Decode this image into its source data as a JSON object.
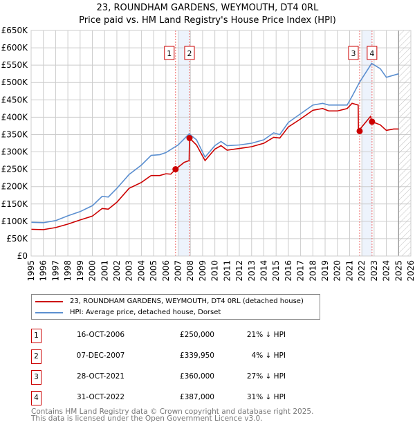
{
  "title_line1": "23, ROUNDHAM GARDENS, WEYMOUTH, DT4 0RL",
  "title_line2": "Price paid vs. HM Land Registry's House Price Index (HPI)",
  "chart_data": {
    "type": "line",
    "title": "23, ROUNDHAM GARDENS, WEYMOUTH, DT4 0RL — Price paid vs. HM Land Registry's House Price Index (HPI)",
    "xlim": [
      1995,
      2026
    ],
    "ylim": [
      0,
      650000
    ],
    "grid": true,
    "legend_placement": "below",
    "x_ticks": [
      "1995",
      "1996",
      "1997",
      "1998",
      "1999",
      "2000",
      "2001",
      "2002",
      "2003",
      "2004",
      "2005",
      "2006",
      "2007",
      "2008",
      "2009",
      "2010",
      "2011",
      "2012",
      "2013",
      "2014",
      "2015",
      "2016",
      "2017",
      "2018",
      "2019",
      "2020",
      "2021",
      "2022",
      "2023",
      "2024",
      "2025",
      "2026"
    ],
    "y_ticks": [
      {
        "v": 0,
        "label": "£0"
      },
      {
        "v": 50000,
        "label": "£50K"
      },
      {
        "v": 100000,
        "label": "£100K"
      },
      {
        "v": 150000,
        "label": "£150K"
      },
      {
        "v": 200000,
        "label": "£200K"
      },
      {
        "v": 250000,
        "label": "£250K"
      },
      {
        "v": 300000,
        "label": "£300K"
      },
      {
        "v": 350000,
        "label": "£350K"
      },
      {
        "v": 400000,
        "label": "£400K"
      },
      {
        "v": 450000,
        "label": "£450K"
      },
      {
        "v": 500000,
        "label": "£500K"
      },
      {
        "v": 550000,
        "label": "£550K"
      },
      {
        "v": 600000,
        "label": "£600K"
      },
      {
        "v": 650000,
        "label": "£650K"
      }
    ],
    "series": [
      {
        "name": "23, ROUNDHAM GARDENS, WEYMOUTH, DT4 0RL (detached house)",
        "color": "#cc0000",
        "points": [
          [
            1995,
            77000
          ],
          [
            1996,
            76000
          ],
          [
            1997,
            82000
          ],
          [
            1998,
            92000
          ],
          [
            1999,
            104000
          ],
          [
            2000,
            115000
          ],
          [
            2000.8,
            137000
          ],
          [
            2001.3,
            135000
          ],
          [
            2002,
            155000
          ],
          [
            2003,
            195000
          ],
          [
            2004,
            212000
          ],
          [
            2004.8,
            232000
          ],
          [
            2005.5,
            232000
          ],
          [
            2006,
            237000
          ],
          [
            2006.4,
            236000
          ],
          [
            2006.79,
            250000
          ],
          [
            2007.5,
            270000
          ],
          [
            2007.9,
            275000
          ],
          [
            2007.93,
            339950
          ],
          [
            2008.5,
            320000
          ],
          [
            2009.2,
            275000
          ],
          [
            2010,
            308000
          ],
          [
            2010.5,
            318000
          ],
          [
            2011,
            305000
          ],
          [
            2012,
            310000
          ],
          [
            2013,
            315000
          ],
          [
            2014,
            325000
          ],
          [
            2014.8,
            342000
          ],
          [
            2015.3,
            340000
          ],
          [
            2016,
            372000
          ],
          [
            2017,
            395000
          ],
          [
            2018,
            420000
          ],
          [
            2018.8,
            425000
          ],
          [
            2019.3,
            418000
          ],
          [
            2020,
            418000
          ],
          [
            2020.8,
            425000
          ],
          [
            2021.2,
            440000
          ],
          [
            2021.7,
            435000
          ],
          [
            2021.72,
            360000
          ],
          [
            2022.7,
            402000
          ],
          [
            2022.83,
            387000
          ],
          [
            2023.5,
            378000
          ],
          [
            2024,
            362000
          ],
          [
            2024.6,
            366000
          ],
          [
            2025,
            366000
          ]
        ]
      },
      {
        "name": "HPI: Average price, detached house, Dorset",
        "color": "#5b8fd0",
        "points": [
          [
            1995,
            97000
          ],
          [
            1996,
            96000
          ],
          [
            1997,
            102000
          ],
          [
            1998,
            116000
          ],
          [
            1999,
            128000
          ],
          [
            2000,
            145000
          ],
          [
            2000.8,
            172000
          ],
          [
            2001.3,
            170000
          ],
          [
            2002,
            195000
          ],
          [
            2003,
            235000
          ],
          [
            2004,
            262000
          ],
          [
            2004.8,
            290000
          ],
          [
            2005.5,
            292000
          ],
          [
            2006,
            298000
          ],
          [
            2007,
            320000
          ],
          [
            2007.9,
            352000
          ],
          [
            2008.5,
            335000
          ],
          [
            2009.2,
            285000
          ],
          [
            2010,
            318000
          ],
          [
            2010.5,
            330000
          ],
          [
            2011,
            318000
          ],
          [
            2012,
            320000
          ],
          [
            2013,
            325000
          ],
          [
            2014,
            335000
          ],
          [
            2014.8,
            355000
          ],
          [
            2015.3,
            350000
          ],
          [
            2016,
            385000
          ],
          [
            2017,
            410000
          ],
          [
            2018,
            435000
          ],
          [
            2018.8,
            440000
          ],
          [
            2019.3,
            435000
          ],
          [
            2020,
            435000
          ],
          [
            2020.8,
            435000
          ],
          [
            2021.2,
            460000
          ],
          [
            2021.8,
            500000
          ],
          [
            2022.8,
            555000
          ],
          [
            2023.5,
            540000
          ],
          [
            2024,
            515000
          ],
          [
            2024.5,
            520000
          ],
          [
            2025,
            525000
          ]
        ]
      }
    ],
    "sales": [
      {
        "id": "1",
        "x": 2006.79,
        "price": 250000
      },
      {
        "id": "2",
        "x": 2007.93,
        "price": 339950
      },
      {
        "id": "3",
        "x": 2021.82,
        "price": 360000
      },
      {
        "id": "4",
        "x": 2022.83,
        "price": 387000
      }
    ],
    "shaded_ranges": [
      [
        2007.0,
        2007.93
      ],
      [
        2022.0,
        2022.83
      ]
    ],
    "forecast_hatch_from": 2025.0
  },
  "legend": {
    "property_label": "23, ROUNDHAM GARDENS, WEYMOUTH, DT4 0RL (detached house)",
    "hpi_label": "HPI: Average price, detached house, Dorset"
  },
  "transactions": [
    {
      "num": "1",
      "date": "16-OCT-2006",
      "price": "£250,000",
      "hpi": "21% ↓ HPI"
    },
    {
      "num": "2",
      "date": "07-DEC-2007",
      "price": "£339,950",
      "hpi": "4% ↓ HPI"
    },
    {
      "num": "3",
      "date": "28-OCT-2021",
      "price": "£360,000",
      "hpi": "27% ↓ HPI"
    },
    {
      "num": "4",
      "date": "31-OCT-2022",
      "price": "£387,000",
      "hpi": "31% ↓ HPI"
    }
  ],
  "footer_line1": "Contains HM Land Registry data © Crown copyright and database right 2025.",
  "footer_line2": "This data is licensed under the Open Government Licence v3.0."
}
